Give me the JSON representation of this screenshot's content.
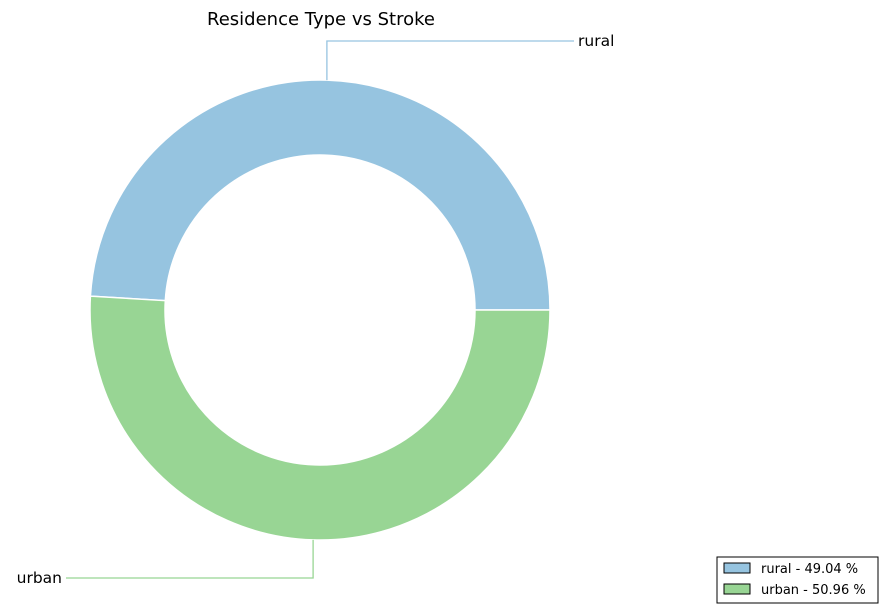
{
  "chart_data": {
    "type": "pie",
    "title": "Residence Type vs Stroke",
    "donut": true,
    "slices": [
      {
        "label": "rural",
        "value": 49.04,
        "color": "#96c4e0",
        "legend": "rural - 49.04 %"
      },
      {
        "label": "urban",
        "value": 50.96,
        "color": "#98d594",
        "legend": "urban - 50.96 %"
      }
    ],
    "legend_position": "bottom-right",
    "grid": false
  }
}
